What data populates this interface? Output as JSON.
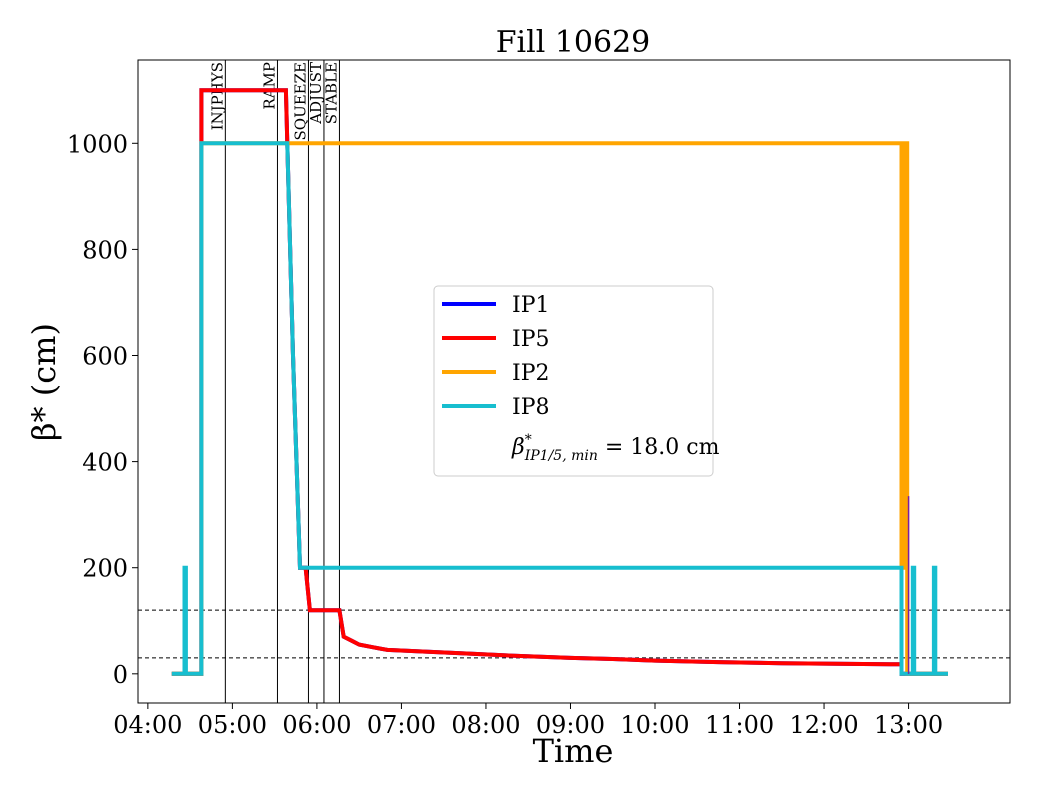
{
  "chart_data": {
    "type": "line",
    "title": "Fill 10629",
    "xlabel": "Time",
    "ylabel": "β* (cm)",
    "x_ticks": [
      "04:00",
      "05:00",
      "06:00",
      "07:00",
      "08:00",
      "09:00",
      "10:00",
      "11:00",
      "12:00",
      "13:00"
    ],
    "y_ticks": [
      0,
      200,
      400,
      600,
      800,
      1000
    ],
    "xlim": [
      "03:53",
      "14:12"
    ],
    "ylim": [
      -55,
      1157
    ],
    "legend_position": "center",
    "grid": false,
    "series": [
      {
        "name": "IP1",
        "color": "#0000ff",
        "points": [
          [
            "04:17",
            0
          ],
          [
            "04:38",
            0
          ],
          [
            "04:38",
            1100
          ],
          [
            "05:38",
            1100
          ],
          [
            "05:39",
            1000
          ],
          [
            "05:43",
            600
          ],
          [
            "05:48",
            200
          ],
          [
            "05:52",
            200
          ],
          [
            "05:55",
            120
          ],
          [
            "06:16",
            120
          ],
          [
            "06:19",
            70
          ],
          [
            "06:25",
            62
          ],
          [
            "06:30",
            55
          ],
          [
            "06:40",
            50
          ],
          [
            "06:50",
            45
          ],
          [
            "07:15",
            42
          ],
          [
            "07:50",
            38
          ],
          [
            "08:20",
            34
          ],
          [
            "09:00",
            30
          ],
          [
            "09:30",
            28
          ],
          [
            "10:00",
            25
          ],
          [
            "10:45",
            22
          ],
          [
            "11:30",
            20
          ],
          [
            "12:54",
            18
          ],
          [
            "12:55",
            18
          ],
          [
            "12:55",
            0
          ],
          [
            "13:28",
            0
          ]
        ]
      },
      {
        "name": "IP5",
        "color": "#ff0000",
        "points": [
          [
            "04:17",
            0
          ],
          [
            "04:38",
            0
          ],
          [
            "04:38",
            1100
          ],
          [
            "05:38",
            1100
          ],
          [
            "05:39",
            1000
          ],
          [
            "05:43",
            600
          ],
          [
            "05:48",
            200
          ],
          [
            "05:52",
            200
          ],
          [
            "05:55",
            120
          ],
          [
            "06:16",
            120
          ],
          [
            "06:19",
            70
          ],
          [
            "06:25",
            62
          ],
          [
            "06:30",
            55
          ],
          [
            "06:40",
            50
          ],
          [
            "06:50",
            45
          ],
          [
            "07:15",
            42
          ],
          [
            "07:50",
            38
          ],
          [
            "08:20",
            34
          ],
          [
            "09:00",
            30
          ],
          [
            "09:30",
            28
          ],
          [
            "10:00",
            25
          ],
          [
            "10:45",
            22
          ],
          [
            "11:30",
            20
          ],
          [
            "12:54",
            18
          ],
          [
            "12:55",
            18
          ],
          [
            "12:55",
            0
          ],
          [
            "13:28",
            0
          ]
        ]
      },
      {
        "name": "IP2",
        "color": "#ffa500",
        "points": [
          [
            "04:17",
            0
          ],
          [
            "04:38",
            0
          ],
          [
            "04:38",
            1000
          ],
          [
            "12:55",
            1000
          ],
          [
            "12:55",
            200
          ],
          [
            "12:57",
            200
          ],
          [
            "12:57",
            1000
          ],
          [
            "12:59",
            1000
          ],
          [
            "12:59",
            0
          ],
          [
            "13:28",
            0
          ]
        ]
      },
      {
        "name": "IP8",
        "color": "#17becf",
        "points": [
          [
            "04:17",
            0
          ],
          [
            "04:26",
            0
          ],
          [
            "04:26",
            200
          ],
          [
            "04:27",
            200
          ],
          [
            "04:27",
            0
          ],
          [
            "04:38",
            0
          ],
          [
            "04:38",
            1000
          ],
          [
            "05:38",
            1000
          ],
          [
            "05:39",
            1000
          ],
          [
            "05:43",
            600
          ],
          [
            "05:48",
            200
          ],
          [
            "12:55",
            200
          ],
          [
            "12:55",
            0
          ],
          [
            "13:03",
            0
          ],
          [
            "13:03",
            200
          ],
          [
            "13:04",
            200
          ],
          [
            "13:04",
            0
          ],
          [
            "13:18",
            0
          ],
          [
            "13:18",
            200
          ],
          [
            "13:19",
            200
          ],
          [
            "13:19",
            0
          ],
          [
            "13:28",
            0
          ]
        ]
      }
    ],
    "hlines": [
      {
        "y": 120,
        "style": "dashed"
      },
      {
        "y": 30,
        "style": "dashed"
      }
    ],
    "annotation_lines": [
      {
        "x": "04:55",
        "label": "INJPHYS"
      },
      {
        "x": "05:32",
        "label": "RAMP"
      },
      {
        "x": "05:54",
        "label": "SQUEEZE"
      },
      {
        "x": "06:05",
        "label": "ADJUST"
      },
      {
        "x": "06:16",
        "label": "STABLE"
      }
    ],
    "extra_markers": [
      {
        "x": "13:00",
        "y_from": 0,
        "y_to": 335,
        "color": "#7a1fa2"
      }
    ],
    "legend": {
      "entries": [
        "IP1",
        "IP5",
        "IP2",
        "IP8"
      ],
      "note_prefix": "β",
      "note_sup": "*",
      "note_sub": "IP1/5, min",
      "note_value": " = 18.0 cm"
    }
  }
}
